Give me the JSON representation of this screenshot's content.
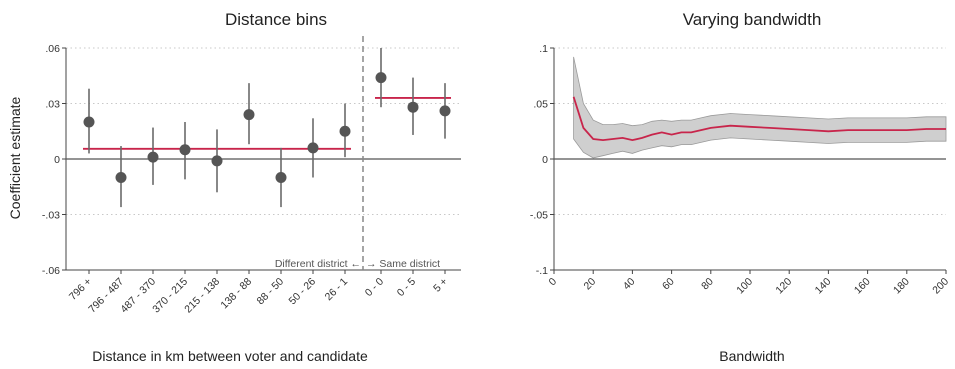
{
  "chart_data": [
    {
      "type": "scatter",
      "title": "Distance bins",
      "xlabel": "Distance in km between voter and candidate",
      "ylabel": "Coefficient estimate",
      "ylim": [
        -0.06,
        0.06
      ],
      "yticks": [
        {
          "value": 0.06,
          "label": ".06"
        },
        {
          "value": 0.03,
          "label": ".03"
        },
        {
          "value": 0,
          "label": "0"
        },
        {
          "value": -0.03,
          "label": "-.03"
        },
        {
          "value": -0.06,
          "label": "-.06"
        }
      ],
      "grid": true,
      "categories": [
        "796 +",
        "796 - 487",
        "487 - 370",
        "370 - 215",
        "215 - 138",
        "138 - 88",
        "88 - 50",
        "50 - 26",
        "26 - 1",
        "0 - 0",
        "0 - 5",
        "5 +"
      ],
      "points": [
        {
          "est": 0.02,
          "lo": 0.003,
          "hi": 0.038
        },
        {
          "est": -0.01,
          "lo": -0.026,
          "hi": 0.007
        },
        {
          "est": 0.001,
          "lo": -0.014,
          "hi": 0.017
        },
        {
          "est": 0.005,
          "lo": -0.011,
          "hi": 0.02
        },
        {
          "est": -0.001,
          "lo": -0.018,
          "hi": 0.016
        },
        {
          "est": 0.024,
          "lo": 0.008,
          "hi": 0.041
        },
        {
          "est": -0.01,
          "lo": -0.026,
          "hi": 0.006
        },
        {
          "est": 0.006,
          "lo": -0.01,
          "hi": 0.022
        },
        {
          "est": 0.015,
          "lo": 0.001,
          "hi": 0.03
        },
        {
          "est": 0.044,
          "lo": 0.028,
          "hi": 0.06
        },
        {
          "est": 0.028,
          "lo": 0.013,
          "hi": 0.044
        },
        {
          "est": 0.026,
          "lo": 0.011,
          "hi": 0.041
        }
      ],
      "mean_lines": [
        {
          "from_index": 0,
          "to_index": 8,
          "value": 0.0055
        },
        {
          "from_index": 9,
          "to_index": 11,
          "value": 0.033
        }
      ],
      "divider_label_left": "Different district ←",
      "divider_label_right": "→ Same district",
      "colors": {
        "point": "#555555",
        "mean_line": "#c8254b",
        "divider": "#888888"
      }
    },
    {
      "type": "area",
      "title": "Varying bandwidth",
      "xlabel": "Bandwidth",
      "ylabel": "",
      "xlim": [
        0,
        200
      ],
      "ylim": [
        -0.1,
        0.1
      ],
      "xticks": [
        0,
        20,
        40,
        60,
        80,
        100,
        120,
        140,
        160,
        180,
        200
      ],
      "yticks": [
        {
          "value": 0.1,
          "label": ".1"
        },
        {
          "value": 0.05,
          "label": ".05"
        },
        {
          "value": 0,
          "label": "0"
        },
        {
          "value": -0.05,
          "label": "-.05"
        },
        {
          "value": -0.1,
          "label": "-.1"
        }
      ],
      "grid": true,
      "x": [
        10,
        15,
        20,
        25,
        30,
        35,
        40,
        45,
        50,
        55,
        60,
        65,
        70,
        75,
        80,
        90,
        100,
        110,
        120,
        130,
        140,
        150,
        160,
        170,
        180,
        190,
        200
      ],
      "estimate": [
        0.056,
        0.028,
        0.018,
        0.017,
        0.018,
        0.019,
        0.017,
        0.019,
        0.022,
        0.024,
        0.022,
        0.024,
        0.024,
        0.026,
        0.028,
        0.03,
        0.029,
        0.028,
        0.027,
        0.026,
        0.025,
        0.026,
        0.026,
        0.026,
        0.026,
        0.027,
        0.027
      ],
      "ci_upper": [
        0.092,
        0.05,
        0.035,
        0.031,
        0.031,
        0.032,
        0.03,
        0.031,
        0.034,
        0.035,
        0.034,
        0.035,
        0.035,
        0.037,
        0.039,
        0.041,
        0.04,
        0.039,
        0.038,
        0.037,
        0.036,
        0.037,
        0.037,
        0.037,
        0.037,
        0.038,
        0.038
      ],
      "ci_lower": [
        0.018,
        0.006,
        0.001,
        0.003,
        0.005,
        0.007,
        0.005,
        0.008,
        0.01,
        0.012,
        0.011,
        0.013,
        0.013,
        0.015,
        0.017,
        0.019,
        0.018,
        0.017,
        0.016,
        0.015,
        0.014,
        0.015,
        0.015,
        0.015,
        0.015,
        0.016,
        0.016
      ],
      "colors": {
        "line": "#c8254b",
        "band": "#cfcfcf",
        "band_edge": "#9a9a9a"
      }
    }
  ]
}
